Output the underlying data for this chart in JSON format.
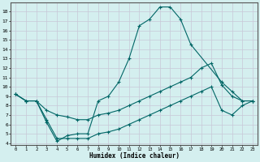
{
  "xlabel": "Humidex (Indice chaleur)",
  "bg_color": "#d4efef",
  "line_color": "#006666",
  "grid_color": "#c8c8d8",
  "xlim": [
    -0.5,
    23.5
  ],
  "ylim": [
    3.8,
    19.0
  ],
  "xticks": [
    0,
    1,
    2,
    3,
    4,
    5,
    6,
    7,
    8,
    9,
    10,
    11,
    12,
    13,
    14,
    15,
    16,
    17,
    18,
    19,
    20,
    21,
    22,
    23
  ],
  "yticks": [
    4,
    5,
    6,
    7,
    8,
    9,
    10,
    11,
    12,
    13,
    14,
    15,
    16,
    17,
    18
  ],
  "line1_x": [
    0,
    1,
    2,
    3,
    4,
    5,
    6,
    7,
    8,
    9,
    10,
    11,
    12,
    13,
    14,
    15,
    16,
    17,
    20,
    21,
    22,
    23
  ],
  "line1_y": [
    9.2,
    8.5,
    8.5,
    6.2,
    4.2,
    4.8,
    5.0,
    5.0,
    8.5,
    9.0,
    10.5,
    13.0,
    16.5,
    17.2,
    18.5,
    18.5,
    17.2,
    14.5,
    10.5,
    9.5,
    8.5,
    8.5
  ],
  "line2_x": [
    0,
    1,
    2,
    3,
    4,
    5,
    6,
    7,
    8,
    9,
    10,
    11,
    12,
    13,
    14,
    15,
    16,
    17,
    18,
    19,
    20,
    21,
    22,
    23
  ],
  "line2_y": [
    9.2,
    8.5,
    8.5,
    7.5,
    7.0,
    6.8,
    6.5,
    6.5,
    7.0,
    7.2,
    7.5,
    8.0,
    8.5,
    9.0,
    9.5,
    10.0,
    10.5,
    11.0,
    12.0,
    12.5,
    10.2,
    9.0,
    8.5,
    8.5
  ],
  "line3_x": [
    0,
    1,
    2,
    3,
    4,
    5,
    6,
    7,
    8,
    9,
    10,
    11,
    12,
    13,
    14,
    15,
    16,
    17,
    18,
    19,
    20,
    21,
    22,
    23
  ],
  "line3_y": [
    9.2,
    8.5,
    8.5,
    6.5,
    4.5,
    4.5,
    4.5,
    4.5,
    5.0,
    5.2,
    5.5,
    6.0,
    6.5,
    7.0,
    7.5,
    8.0,
    8.5,
    9.0,
    9.5,
    10.0,
    7.5,
    7.0,
    8.0,
    8.5
  ]
}
